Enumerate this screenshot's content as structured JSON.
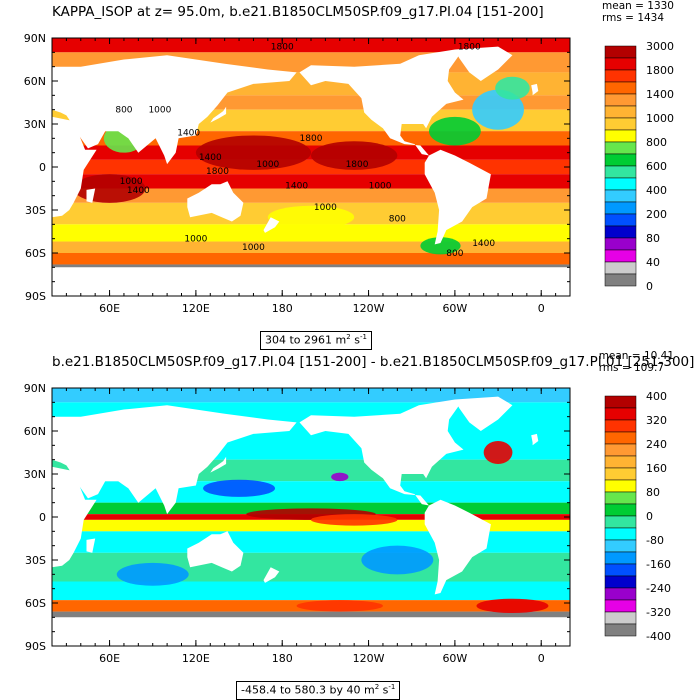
{
  "chart_data": [
    {
      "type": "heatmap",
      "title": "KAPPA_ISOP at z=  95.0m, b.e21.B1850CLM50SP.f09_g17.PI.04 [151-200]",
      "stats": {
        "mean": "mean = 1330",
        "rms": "rms = 1434"
      },
      "range_label": "304 to 2961 m",
      "units_sup1": "2",
      "units_mid": " s",
      "units_sup2": "-1",
      "xlabel": "",
      "ylabel": "",
      "x_ticks": [
        "60E",
        "120E",
        "180",
        "120W",
        "60W",
        "0"
      ],
      "y_ticks": [
        "90N",
        "60N",
        "30N",
        "0",
        "30S",
        "60S",
        "90S"
      ],
      "colorbar": {
        "labels": [
          "3000",
          "1800",
          "1400",
          "1000",
          "800",
          "600",
          "400",
          "200",
          "80",
          "40",
          "0"
        ],
        "colors": [
          "#b30000",
          "#e60000",
          "#ff3300",
          "#ff6600",
          "#ff9933",
          "#ffb333",
          "#ffcc33",
          "#ffff00",
          "#66e64d",
          "#00cc33",
          "#33e6a0",
          "#00ffff",
          "#33ccff",
          "#0099ff",
          "#0050ff",
          "#0000cc",
          "#9900cc",
          "#e600e6",
          "#cccccc",
          "#808080"
        ]
      },
      "contour_labels": [
        "1800",
        "1800",
        "800",
        "1000",
        "1400",
        "1800",
        "1400",
        "1000",
        "1800",
        "1000",
        "1400",
        "1800",
        "1400",
        "1000",
        "1000",
        "800",
        "1000",
        "1400",
        "1000",
        "800"
      ]
    },
    {
      "type": "heatmap",
      "title": "b.e21.B1850CLM50SP.f09_g17.PI.04 [151-200] - b.e21.B1850CLM50SP.f09_g17.PI.01 [251-300]",
      "stats": {
        "mean": "mean = 10.41",
        "rms": "rms = 109.7"
      },
      "range_label": "-458.4 to 580.3 by 40 m",
      "units_sup1": "2",
      "units_mid": " s",
      "units_sup2": "-1",
      "xlabel": "",
      "ylabel": "",
      "x_ticks": [
        "60E",
        "120E",
        "180",
        "120W",
        "60W",
        "0"
      ],
      "y_ticks": [
        "90N",
        "60N",
        "30N",
        "0",
        "30S",
        "60S",
        "90S"
      ],
      "colorbar": {
        "labels": [
          "400",
          "320",
          "240",
          "160",
          "80",
          "0",
          "-80",
          "-160",
          "-240",
          "-320",
          "-400"
        ],
        "colors": [
          "#b30000",
          "#e60000",
          "#ff3300",
          "#ff6600",
          "#ff9933",
          "#ffb333",
          "#ffcc33",
          "#ffff00",
          "#66e64d",
          "#00cc33",
          "#33e6a0",
          "#00ffff",
          "#33ccff",
          "#0099ff",
          "#0050ff",
          "#0000cc",
          "#9900cc",
          "#e600e6",
          "#cccccc",
          "#808080"
        ]
      }
    }
  ]
}
